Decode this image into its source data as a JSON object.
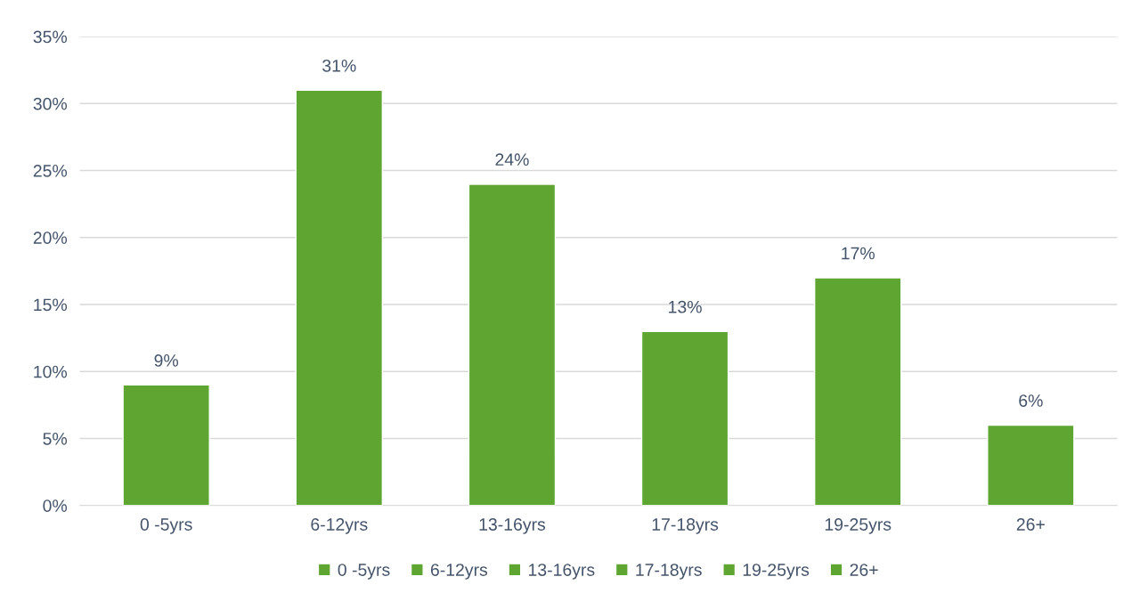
{
  "chart_data": {
    "type": "bar",
    "categories": [
      "0 -5yrs",
      "6-12yrs",
      "13-16yrs",
      "17-18yrs",
      "19-25yrs",
      "26+"
    ],
    "series": [
      {
        "name": "0 -5yrs",
        "color": "#5ea532",
        "values": [
          9,
          null,
          null,
          null,
          null,
          null
        ],
        "value_labels": [
          "9%",
          null,
          null,
          null,
          null,
          null
        ]
      },
      {
        "name": "6-12yrs",
        "color": "#5ea532",
        "values": [
          null,
          31,
          null,
          null,
          null,
          null
        ],
        "value_labels": [
          null,
          "31%",
          null,
          null,
          null,
          null
        ]
      },
      {
        "name": "13-16yrs",
        "color": "#5ea532",
        "values": [
          null,
          null,
          24,
          null,
          null,
          null
        ],
        "value_labels": [
          null,
          null,
          "24%",
          null,
          null,
          null
        ]
      },
      {
        "name": "17-18yrs",
        "color": "#5ea532",
        "values": [
          null,
          null,
          null,
          13,
          null,
          null
        ],
        "value_labels": [
          null,
          null,
          null,
          "13%",
          null,
          null
        ]
      },
      {
        "name": "19-25yrs",
        "color": "#5ea532",
        "values": [
          null,
          null,
          null,
          null,
          17,
          null
        ],
        "value_labels": [
          null,
          null,
          null,
          null,
          "17%",
          null
        ]
      },
      {
        "name": "26+",
        "color": "#5ea532",
        "values": [
          null,
          null,
          null,
          null,
          null,
          6
        ],
        "value_labels": [
          null,
          null,
          null,
          null,
          null,
          "6%"
        ]
      }
    ],
    "stacked": true,
    "ylim": [
      0,
      35
    ],
    "yticks": [
      {
        "value": 0,
        "label": "0%"
      },
      {
        "value": 5,
        "label": "5%"
      },
      {
        "value": 10,
        "label": "10%"
      },
      {
        "value": 15,
        "label": "15%"
      },
      {
        "value": 20,
        "label": "20%"
      },
      {
        "value": 25,
        "label": "25%"
      },
      {
        "value": 30,
        "label": "30%"
      },
      {
        "value": 35,
        "label": "35%"
      }
    ],
    "grid": "y",
    "legend": "bottom"
  }
}
